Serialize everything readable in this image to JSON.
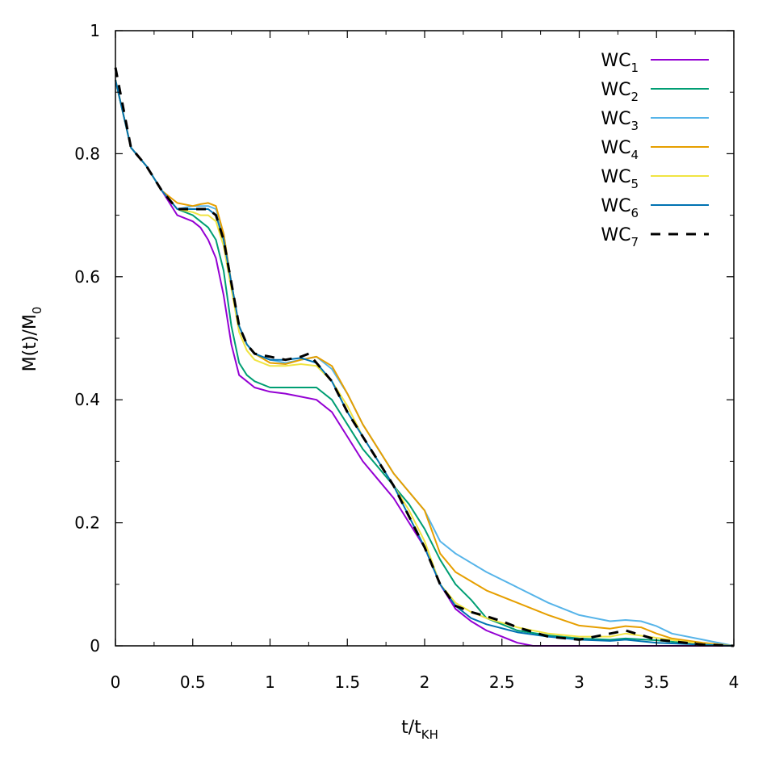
{
  "chart_data": {
    "type": "line",
    "title": "",
    "xlabel": {
      "main": "t/t",
      "sub": "KH"
    },
    "ylabel": {
      "main": "M(t)/M",
      "sub": "0"
    },
    "xlim": [
      0,
      4
    ],
    "ylim": [
      0,
      1
    ],
    "xticks": [
      0,
      0.5,
      1,
      1.5,
      2,
      2.5,
      3,
      3.5,
      4
    ],
    "xtick_labels": [
      "0",
      "0.5",
      "1",
      "1.5",
      "2",
      "2.5",
      "3",
      "3.5",
      "4"
    ],
    "yticks": [
      0,
      0.2,
      0.4,
      0.6,
      0.8,
      1
    ],
    "ytick_labels": [
      "0",
      "0.2",
      "0.4",
      "0.6",
      "0.8",
      "1"
    ],
    "grid": false,
    "legend_position": "top-right",
    "series": [
      {
        "name": "WC",
        "sub": "1",
        "color": "#9400d3",
        "dash": false,
        "x": [
          0,
          0.1,
          0.2,
          0.3,
          0.4,
          0.5,
          0.55,
          0.6,
          0.65,
          0.7,
          0.75,
          0.8,
          0.85,
          0.9,
          1.0,
          1.1,
          1.2,
          1.3,
          1.4,
          1.5,
          1.6,
          1.7,
          1.8,
          1.9,
          2.0,
          2.1,
          2.2,
          2.3,
          2.4,
          2.5,
          2.6,
          2.7,
          2.8,
          3.0,
          3.5,
          4.0
        ],
        "y": [
          0.92,
          0.81,
          0.78,
          0.74,
          0.7,
          0.69,
          0.68,
          0.66,
          0.63,
          0.57,
          0.49,
          0.44,
          0.43,
          0.42,
          0.413,
          0.41,
          0.405,
          0.4,
          0.38,
          0.34,
          0.3,
          0.27,
          0.24,
          0.2,
          0.16,
          0.1,
          0.06,
          0.04,
          0.025,
          0.015,
          0.005,
          0.0,
          0.0,
          0.0,
          0.0,
          0.0
        ]
      },
      {
        "name": "WC",
        "sub": "2",
        "color": "#009e73",
        "dash": false,
        "x": [
          0,
          0.1,
          0.2,
          0.3,
          0.4,
          0.5,
          0.55,
          0.6,
          0.65,
          0.7,
          0.75,
          0.8,
          0.85,
          0.9,
          1.0,
          1.1,
          1.2,
          1.3,
          1.4,
          1.5,
          1.6,
          1.7,
          1.8,
          1.9,
          2.0,
          2.1,
          2.2,
          2.3,
          2.4,
          2.5,
          2.6,
          2.8,
          3.0,
          3.2,
          3.3,
          3.5,
          3.8,
          4.0
        ],
        "y": [
          0.92,
          0.81,
          0.78,
          0.74,
          0.71,
          0.7,
          0.69,
          0.68,
          0.66,
          0.61,
          0.52,
          0.46,
          0.44,
          0.43,
          0.42,
          0.42,
          0.42,
          0.42,
          0.4,
          0.36,
          0.32,
          0.29,
          0.26,
          0.23,
          0.19,
          0.14,
          0.1,
          0.075,
          0.045,
          0.035,
          0.025,
          0.017,
          0.012,
          0.01,
          0.012,
          0.009,
          0.002,
          0.0
        ]
      },
      {
        "name": "WC",
        "sub": "3",
        "color": "#56b4e9",
        "dash": false,
        "x": [
          0,
          0.1,
          0.2,
          0.3,
          0.4,
          0.5,
          0.55,
          0.6,
          0.65,
          0.7,
          0.75,
          0.8,
          0.85,
          0.9,
          1.0,
          1.1,
          1.2,
          1.3,
          1.4,
          1.5,
          1.6,
          1.7,
          1.8,
          1.9,
          2.0,
          2.1,
          2.2,
          2.4,
          2.6,
          2.8,
          3.0,
          3.2,
          3.3,
          3.4,
          3.5,
          3.6,
          3.8,
          4.0
        ],
        "y": [
          0.92,
          0.81,
          0.78,
          0.74,
          0.71,
          0.715,
          0.715,
          0.715,
          0.71,
          0.67,
          0.59,
          0.52,
          0.49,
          0.475,
          0.465,
          0.46,
          0.465,
          0.47,
          0.45,
          0.41,
          0.36,
          0.32,
          0.28,
          0.25,
          0.22,
          0.17,
          0.15,
          0.12,
          0.095,
          0.07,
          0.05,
          0.04,
          0.042,
          0.04,
          0.032,
          0.02,
          0.01,
          0.0
        ]
      },
      {
        "name": "WC",
        "sub": "4",
        "color": "#e69f00",
        "dash": false,
        "x": [
          0,
          0.1,
          0.2,
          0.3,
          0.4,
          0.5,
          0.55,
          0.6,
          0.65,
          0.7,
          0.75,
          0.8,
          0.85,
          0.9,
          1.0,
          1.1,
          1.2,
          1.3,
          1.4,
          1.5,
          1.6,
          1.7,
          1.8,
          1.9,
          2.0,
          2.1,
          2.2,
          2.4,
          2.6,
          2.8,
          3.0,
          3.2,
          3.3,
          3.4,
          3.5,
          3.6,
          3.8,
          4.0
        ],
        "y": [
          0.92,
          0.81,
          0.78,
          0.74,
          0.72,
          0.715,
          0.718,
          0.72,
          0.715,
          0.67,
          0.59,
          0.52,
          0.49,
          0.475,
          0.46,
          0.458,
          0.465,
          0.47,
          0.455,
          0.41,
          0.36,
          0.32,
          0.28,
          0.25,
          0.22,
          0.15,
          0.12,
          0.09,
          0.07,
          0.05,
          0.033,
          0.028,
          0.032,
          0.03,
          0.02,
          0.012,
          0.005,
          0.0
        ]
      },
      {
        "name": "WC",
        "sub": "5",
        "color": "#f0e442",
        "dash": false,
        "x": [
          0,
          0.1,
          0.2,
          0.3,
          0.4,
          0.5,
          0.55,
          0.6,
          0.65,
          0.7,
          0.75,
          0.8,
          0.85,
          0.9,
          1.0,
          1.1,
          1.2,
          1.3,
          1.4,
          1.5,
          1.6,
          1.7,
          1.8,
          1.9,
          2.0,
          2.1,
          2.2,
          2.3,
          2.4,
          2.6,
          2.8,
          3.0,
          3.2,
          3.3,
          3.5,
          3.8,
          4.0
        ],
        "y": [
          0.92,
          0.81,
          0.78,
          0.74,
          0.71,
          0.705,
          0.7,
          0.7,
          0.69,
          0.65,
          0.58,
          0.51,
          0.48,
          0.465,
          0.455,
          0.455,
          0.458,
          0.455,
          0.43,
          0.39,
          0.34,
          0.3,
          0.26,
          0.22,
          0.17,
          0.1,
          0.07,
          0.055,
          0.045,
          0.03,
          0.02,
          0.015,
          0.015,
          0.02,
          0.013,
          0.003,
          0.0
        ]
      },
      {
        "name": "WC",
        "sub": "6",
        "color": "#0072b2",
        "dash": false,
        "x": [
          0,
          0.1,
          0.2,
          0.3,
          0.4,
          0.5,
          0.55,
          0.6,
          0.65,
          0.7,
          0.75,
          0.8,
          0.85,
          0.9,
          1.0,
          1.1,
          1.2,
          1.3,
          1.4,
          1.5,
          1.6,
          1.7,
          1.8,
          1.9,
          2.0,
          2.1,
          2.2,
          2.3,
          2.4,
          2.6,
          2.8,
          3.0,
          3.2,
          3.3,
          3.5,
          3.8,
          4.0
        ],
        "y": [
          0.92,
          0.81,
          0.78,
          0.74,
          0.71,
          0.71,
          0.71,
          0.71,
          0.7,
          0.66,
          0.59,
          0.52,
          0.49,
          0.475,
          0.465,
          0.465,
          0.468,
          0.46,
          0.43,
          0.38,
          0.34,
          0.3,
          0.26,
          0.21,
          0.16,
          0.1,
          0.065,
          0.045,
          0.035,
          0.022,
          0.015,
          0.01,
          0.008,
          0.01,
          0.005,
          0.002,
          0.0
        ]
      },
      {
        "name": "WC",
        "sub": "7",
        "color": "#000000",
        "dash": true,
        "x": [
          0,
          0.1,
          0.2,
          0.3,
          0.4,
          0.5,
          0.55,
          0.6,
          0.65,
          0.7,
          0.75,
          0.8,
          0.85,
          0.9,
          1.0,
          1.1,
          1.2,
          1.25,
          1.3,
          1.4,
          1.5,
          1.6,
          1.7,
          1.8,
          1.9,
          2.0,
          2.1,
          2.2,
          2.3,
          2.4,
          2.5,
          2.6,
          2.8,
          3.0,
          3.2,
          3.3,
          3.5,
          3.8,
          4.0
        ],
        "y": [
          0.94,
          0.81,
          0.78,
          0.74,
          0.71,
          0.71,
          0.71,
          0.71,
          0.7,
          0.66,
          0.59,
          0.52,
          0.49,
          0.475,
          0.47,
          0.465,
          0.47,
          0.475,
          0.46,
          0.43,
          0.38,
          0.34,
          0.3,
          0.26,
          0.21,
          0.16,
          0.1,
          0.065,
          0.055,
          0.048,
          0.04,
          0.03,
          0.015,
          0.01,
          0.02,
          0.025,
          0.01,
          0.002,
          0.0
        ]
      }
    ]
  }
}
